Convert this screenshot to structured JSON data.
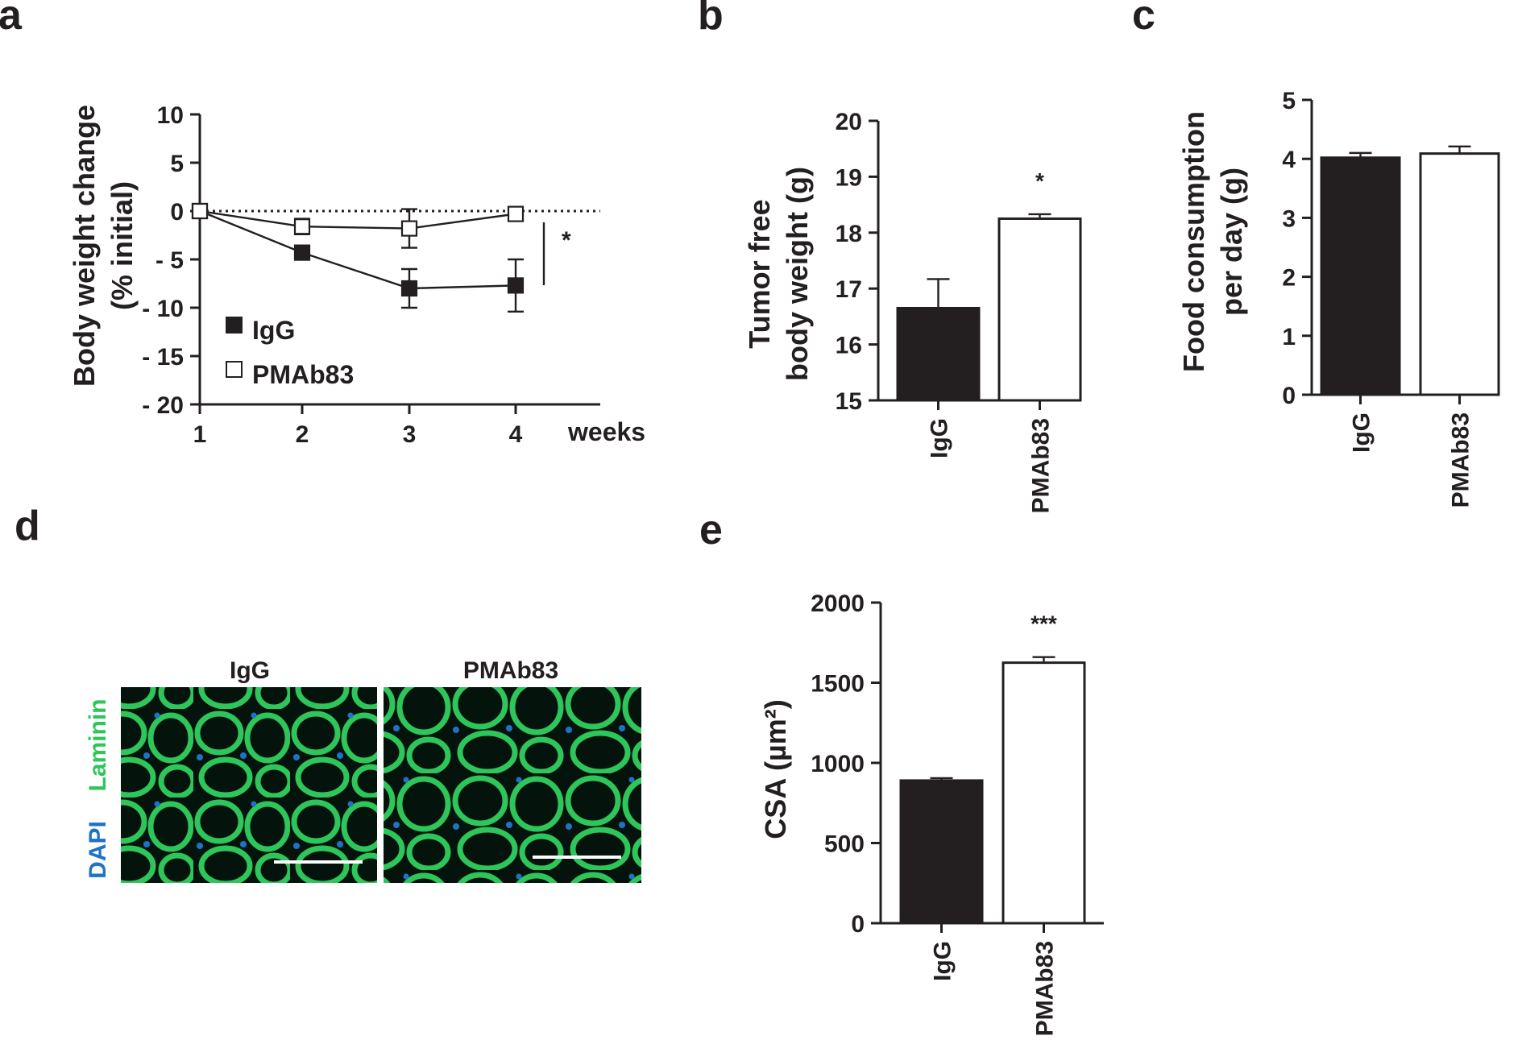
{
  "panels": {
    "a": "a",
    "b": "b",
    "c": "c",
    "d": "d",
    "e": "e"
  },
  "colors": {
    "filled": "#231f20",
    "open": "#ffffff",
    "laminin": "#2ec55a",
    "dapi": "#1e73c6",
    "bg_micro": "#04140c"
  },
  "chart_data": [
    {
      "panel": "a",
      "type": "line",
      "ylabel_line1": "Body weight change",
      "ylabel_line2": "(% initial)",
      "xlabel": "weeks",
      "x": [
        1,
        2,
        3,
        4
      ],
      "xticks": [
        "1",
        "2",
        "3",
        "4"
      ],
      "ylim": [
        -20,
        10
      ],
      "yticks": [
        "10",
        "5",
        "0",
        "- 5",
        "- 10",
        "- 15",
        "- 20"
      ],
      "reference_line": 0,
      "series": [
        {
          "name": "IgG",
          "marker": "filled-square",
          "values": [
            0,
            -4.3,
            -8.0,
            -7.7
          ],
          "errors": [
            0,
            0.5,
            2.0,
            2.7
          ]
        },
        {
          "name": "PMAb83",
          "marker": "open-square",
          "values": [
            0,
            -1.6,
            -1.8,
            -0.3
          ],
          "errors": [
            0,
            0.8,
            2.0,
            0.6
          ]
        }
      ],
      "significance": "*"
    },
    {
      "panel": "b",
      "type": "bar",
      "ylabel_line1": "Tumor free",
      "ylabel_line2": "body weight (g)",
      "categories": [
        "IgG",
        "PMAb83"
      ],
      "values": [
        16.65,
        18.25
      ],
      "errors": [
        0.52,
        0.08
      ],
      "ylim": [
        15,
        20
      ],
      "yticks": [
        "20",
        "19",
        "18",
        "17",
        "16",
        "15"
      ],
      "significance": [
        "",
        "*"
      ]
    },
    {
      "panel": "c",
      "type": "bar",
      "ylabel_line1": "Food consumption",
      "ylabel_line2": "per day (g)",
      "categories": [
        "IgG",
        "PMAb83"
      ],
      "values": [
        4.02,
        4.09
      ],
      "errors": [
        0.08,
        0.12
      ],
      "ylim": [
        0,
        5
      ],
      "yticks": [
        "5",
        "4",
        "3",
        "2",
        "1",
        "0"
      ],
      "significance": [
        "",
        ""
      ]
    },
    {
      "panel": "e",
      "type": "bar",
      "ylabel": "CSA (µm²)",
      "categories": [
        "IgG",
        "PMAb83"
      ],
      "values": [
        890,
        1625
      ],
      "errors": [
        15,
        35
      ],
      "ylim": [
        0,
        2000
      ],
      "yticks": [
        "2000",
        "1500",
        "1000",
        "500",
        "0"
      ],
      "significance": [
        "",
        "***"
      ]
    }
  ],
  "micrographs": {
    "label_igg": "IgG",
    "label_pmab": "PMAb83",
    "stain_dapi": "DAPI",
    "stain_laminin": "Laminin"
  }
}
